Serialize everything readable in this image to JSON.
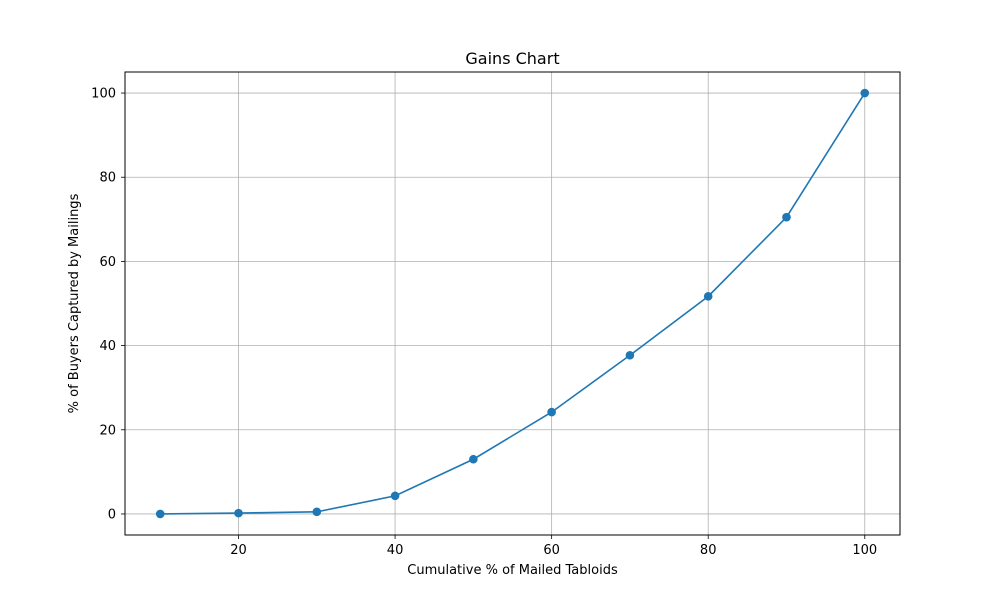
{
  "chart_data": {
    "type": "line",
    "title": "Gains Chart",
    "xlabel": "Cumulative % of Mailed Tabloids",
    "ylabel": "% of Buyers Captured by Mailings",
    "xlim": [
      5.5,
      104.5
    ],
    "ylim": [
      -5,
      105
    ],
    "xticks": [
      20,
      40,
      60,
      80,
      100
    ],
    "yticks": [
      0,
      20,
      40,
      60,
      80,
      100
    ],
    "grid": true,
    "series": [
      {
        "color": "#1f77b4",
        "marker": "circle",
        "x": [
          10,
          20,
          30,
          40,
          50,
          60,
          70,
          80,
          90,
          100
        ],
        "y": [
          0.0,
          0.2,
          0.5,
          4.3,
          13.0,
          24.2,
          37.7,
          51.7,
          70.5,
          100.0
        ]
      }
    ]
  }
}
